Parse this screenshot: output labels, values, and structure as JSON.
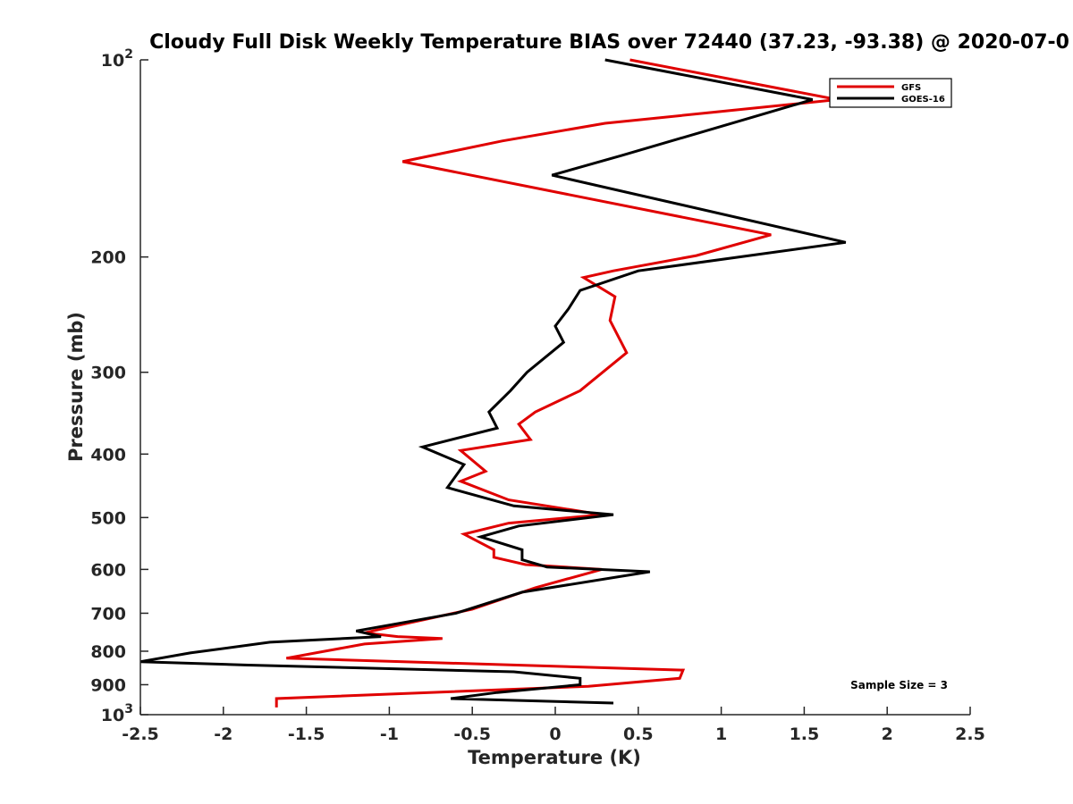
{
  "chart_data": {
    "type": "line",
    "title": "Cloudy Full Disk Weekly Temperature BIAS over 72440 (37.23, -93.38) @ 2020-07-0",
    "xlabel": "Temperature (K)",
    "ylabel": "Pressure (mb)",
    "xlim": [
      -2.5,
      2.5
    ],
    "ylim": [
      1000,
      100
    ],
    "y_scale": "log",
    "y_reversed": true,
    "x_ticks": [
      "-2.5",
      "-2",
      "-1.5",
      "-1",
      "-0.5",
      "0",
      "0.5",
      "1",
      "1.5",
      "2",
      "2.5"
    ],
    "x_tick_values": [
      -2.5,
      -2,
      -1.5,
      -1,
      -0.5,
      0,
      0.5,
      1,
      1.5,
      2,
      2.5
    ],
    "y_ticks": [
      {
        "value": 100,
        "label": "10",
        "exp": "2"
      },
      {
        "value": 200,
        "label": "200",
        "exp": ""
      },
      {
        "value": 300,
        "label": "300",
        "exp": ""
      },
      {
        "value": 400,
        "label": "400",
        "exp": ""
      },
      {
        "value": 500,
        "label": "500",
        "exp": ""
      },
      {
        "value": 600,
        "label": "600",
        "exp": ""
      },
      {
        "value": 700,
        "label": "700",
        "exp": ""
      },
      {
        "value": 800,
        "label": "800",
        "exp": ""
      },
      {
        "value": 900,
        "label": "900",
        "exp": ""
      },
      {
        "value": 1000,
        "label": "10",
        "exp": "3"
      }
    ],
    "grid": false,
    "legend_position": "top-right",
    "annotation": "Sample Size = 3",
    "series": [
      {
        "name": "GFS",
        "color": "#e00000",
        "points": [
          [
            0.45,
            100
          ],
          [
            1.7,
            115
          ],
          [
            0.3,
            125
          ],
          [
            -0.32,
            133
          ],
          [
            -0.92,
            143
          ],
          [
            1.3,
            185
          ],
          [
            0.85,
            199
          ],
          [
            0.35,
            210
          ],
          [
            0.17,
            215
          ],
          [
            0.36,
            230
          ],
          [
            0.33,
            250
          ],
          [
            0.43,
            280
          ],
          [
            0.15,
            320
          ],
          [
            -0.12,
            345
          ],
          [
            -0.22,
            360
          ],
          [
            -0.15,
            380
          ],
          [
            -0.57,
            395
          ],
          [
            -0.42,
            425
          ],
          [
            -0.57,
            440
          ],
          [
            -0.28,
            470
          ],
          [
            0.28,
            495
          ],
          [
            -0.28,
            510
          ],
          [
            -0.55,
            530
          ],
          [
            -0.37,
            560
          ],
          [
            -0.37,
            575
          ],
          [
            -0.18,
            590
          ],
          [
            0.28,
            600
          ],
          [
            -0.12,
            640
          ],
          [
            -0.5,
            690
          ],
          [
            -1.05,
            740
          ],
          [
            -1.15,
            750
          ],
          [
            -0.95,
            760
          ],
          [
            -0.68,
            765
          ],
          [
            -1.15,
            780
          ],
          [
            -1.62,
            820
          ],
          [
            0.77,
            855
          ],
          [
            0.75,
            880
          ],
          [
            0.2,
            905
          ],
          [
            -1.68,
            945
          ],
          [
            -1.68,
            975
          ]
        ]
      },
      {
        "name": "GOES-16",
        "color": "#000000",
        "points": [
          [
            0.3,
            100
          ],
          [
            1.55,
            115
          ],
          [
            0.4,
            140
          ],
          [
            -0.02,
            150
          ],
          [
            1.75,
            190
          ],
          [
            0.5,
            210
          ],
          [
            0.15,
            225
          ],
          [
            0.08,
            240
          ],
          [
            0.0,
            255
          ],
          [
            0.05,
            270
          ],
          [
            -0.17,
            300
          ],
          [
            -0.27,
            320
          ],
          [
            -0.4,
            345
          ],
          [
            -0.35,
            365
          ],
          [
            -0.8,
            390
          ],
          [
            -0.55,
            415
          ],
          [
            -0.65,
            450
          ],
          [
            -0.25,
            480
          ],
          [
            0.35,
            495
          ],
          [
            -0.22,
            515
          ],
          [
            -0.45,
            535
          ],
          [
            -0.2,
            560
          ],
          [
            -0.2,
            580
          ],
          [
            -0.05,
            595
          ],
          [
            0.57,
            605
          ],
          [
            -0.2,
            650
          ],
          [
            -0.6,
            700
          ],
          [
            -1.2,
            745
          ],
          [
            -1.05,
            760
          ],
          [
            -1.72,
            775
          ],
          [
            -2.2,
            805
          ],
          [
            -2.5,
            830
          ],
          [
            -1.85,
            840
          ],
          [
            -0.25,
            860
          ],
          [
            0.15,
            880
          ],
          [
            0.15,
            900
          ],
          [
            -0.35,
            925
          ],
          [
            -0.63,
            945
          ],
          [
            0.35,
            960
          ]
        ]
      }
    ]
  }
}
